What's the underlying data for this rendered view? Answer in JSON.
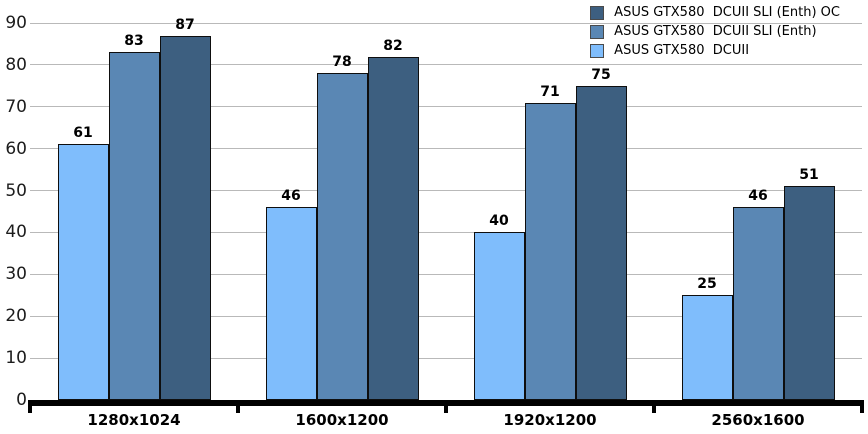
{
  "chart_data": {
    "type": "bar",
    "categories": [
      "1280x1024",
      "1600x1200",
      "1920x1200",
      "2560x1600"
    ],
    "series": [
      {
        "name": "ASUS GTX580  DCUII",
        "color": "#7fbdfc",
        "values": [
          61,
          46,
          40,
          25
        ]
      },
      {
        "name": "ASUS GTX580  DCUII SLI (Enth)",
        "color": "#5a87b4",
        "values": [
          83,
          78,
          71,
          46
        ]
      },
      {
        "name": "ASUS GTX580  DCUII SLI (Enth) OC",
        "color": "#3d5f80",
        "values": [
          87,
          82,
          75,
          51
        ]
      }
    ],
    "ylim": [
      0,
      90
    ],
    "ytick_labels": [
      "0",
      "10",
      "20",
      "30",
      "40",
      "50",
      "60",
      "70",
      "80",
      "90"
    ],
    "grid": "horizontal",
    "legend": {
      "position": "top-right",
      "order": "reversed"
    }
  }
}
